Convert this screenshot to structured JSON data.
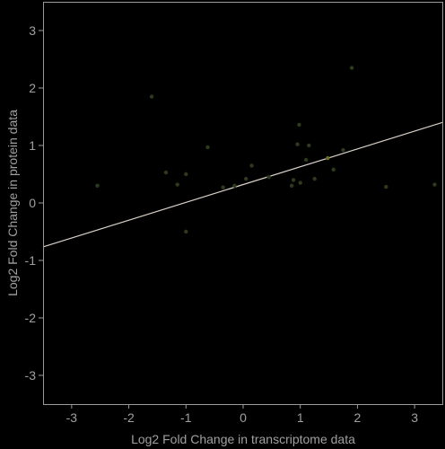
{
  "chart_data": {
    "type": "scatter",
    "xlabel": "Log2 Fold Change in transcriptome data",
    "ylabel": "Log2 Fold Change in protein data",
    "xlim": [
      -3.5,
      3.5
    ],
    "ylim": [
      -3.5,
      3.5
    ],
    "x_ticks": [
      -3,
      -2,
      -1,
      0,
      1,
      2,
      3
    ],
    "y_ticks": [
      -3,
      -2,
      -1,
      0,
      1,
      2,
      3
    ],
    "grid": false,
    "background_color": "#000000",
    "frame_color": "#9a9a9a",
    "point_color": "#2e3a1e",
    "highlight_point_color": "#6b6b2a",
    "fit_line_color": "#d8d0c8",
    "fit_line": {
      "intercept": 0.32,
      "slope": 0.31
    },
    "points": [
      {
        "x": -2.55,
        "y": 0.3
      },
      {
        "x": -1.6,
        "y": 1.85
      },
      {
        "x": -1.35,
        "y": 0.53
      },
      {
        "x": -1.15,
        "y": 0.32
      },
      {
        "x": -1.0,
        "y": 0.5
      },
      {
        "x": -1.0,
        "y": -0.5
      },
      {
        "x": -0.62,
        "y": 0.97
      },
      {
        "x": -0.35,
        "y": 0.27
      },
      {
        "x": -0.15,
        "y": 0.3
      },
      {
        "x": 0.05,
        "y": 0.42
      },
      {
        "x": 0.15,
        "y": 0.65
      },
      {
        "x": 0.45,
        "y": 0.45
      },
      {
        "x": 0.85,
        "y": 0.3
      },
      {
        "x": 0.88,
        "y": 0.4
      },
      {
        "x": 0.95,
        "y": 1.02
      },
      {
        "x": 0.98,
        "y": 1.36
      },
      {
        "x": 1.0,
        "y": 0.35
      },
      {
        "x": 1.1,
        "y": 0.75
      },
      {
        "x": 1.15,
        "y": 1.0
      },
      {
        "x": 1.25,
        "y": 0.42
      },
      {
        "x": 1.48,
        "y": 0.78,
        "highlight": true
      },
      {
        "x": 1.58,
        "y": 0.58
      },
      {
        "x": 1.75,
        "y": 0.92
      },
      {
        "x": 1.9,
        "y": 2.35
      },
      {
        "x": 2.5,
        "y": 0.28
      },
      {
        "x": 3.35,
        "y": 0.32
      }
    ]
  }
}
